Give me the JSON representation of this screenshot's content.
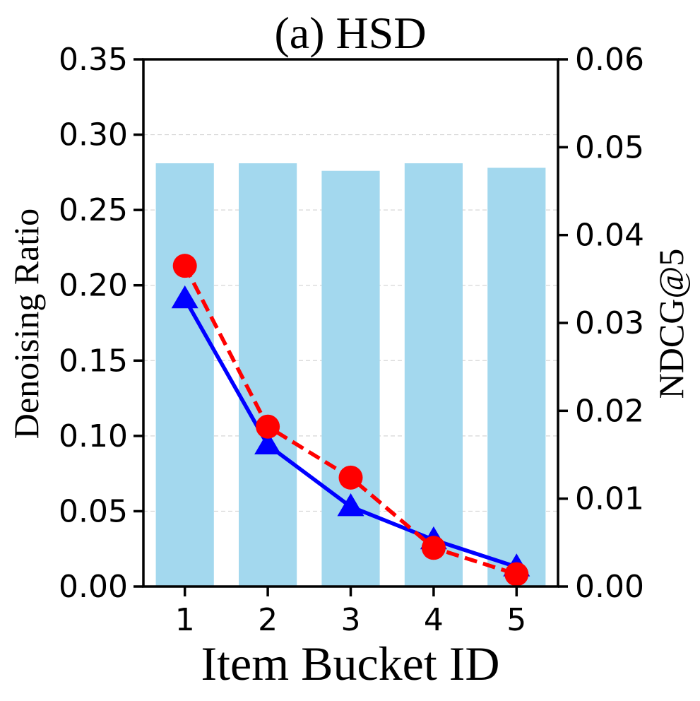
{
  "chart_data": {
    "type": "bar+line",
    "title": "(a) HSD",
    "xlabel": "Item Bucket ID",
    "ylabel_left": "Denoising Ratio",
    "ylabel_right": "NDCG@5",
    "categories": [
      "1",
      "2",
      "3",
      "4",
      "5"
    ],
    "ylim_left": [
      0,
      0.35
    ],
    "ylim_right": [
      0,
      0.06
    ],
    "yticks_left": [
      "0.00",
      "0.05",
      "0.10",
      "0.15",
      "0.20",
      "0.25",
      "0.30",
      "0.35"
    ],
    "yticks_right": [
      "0.00",
      "0.01",
      "0.02",
      "0.03",
      "0.04",
      "0.05",
      "0.06"
    ],
    "grid": "horizontal dashed",
    "bars": {
      "axis": "left",
      "color": "#a3d8ee",
      "values": [
        0.281,
        0.281,
        0.276,
        0.281,
        0.278
      ]
    },
    "series": [
      {
        "axis": "left",
        "marker": "triangle",
        "linestyle": "solid",
        "color": "#0000ff",
        "values": [
          0.191,
          0.094,
          0.053,
          0.031,
          0.013
        ]
      },
      {
        "axis": "right",
        "marker": "circle",
        "linestyle": "dashed",
        "color": "#ff0000",
        "values": [
          0.0365,
          0.0182,
          0.0124,
          0.0044,
          0.0014
        ]
      }
    ]
  }
}
